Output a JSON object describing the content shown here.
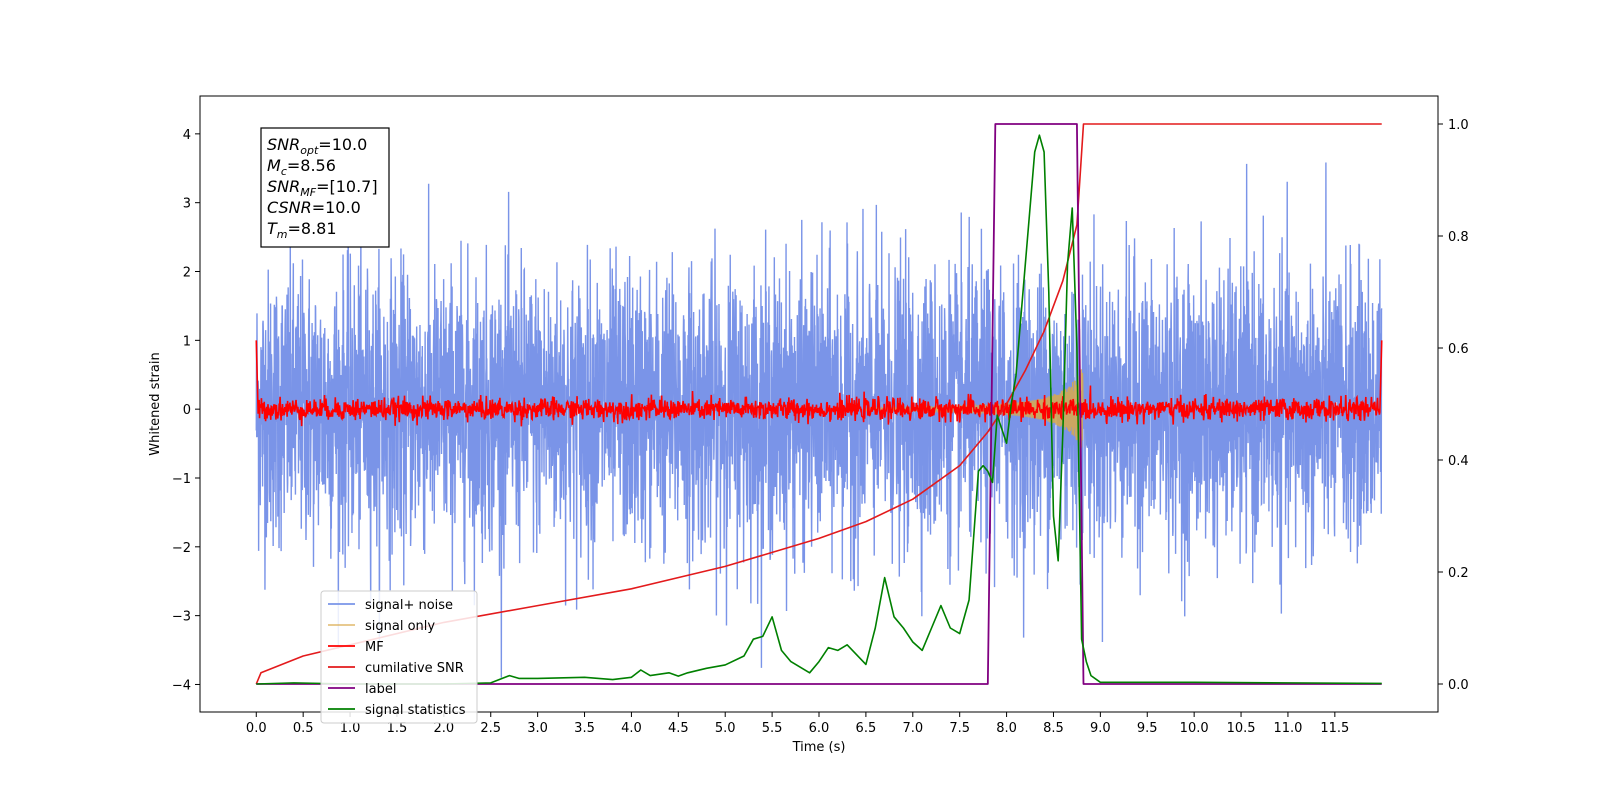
{
  "chart_data": {
    "type": "line",
    "xlabel": "Time (s)",
    "ylabel_left": "Whitened strain",
    "xlim": [
      -0.6,
      12.6
    ],
    "ylim_left": [
      -4.4,
      4.55
    ],
    "ylim_right": [
      -0.05,
      1.05
    ],
    "x_ticks": [
      "0.0",
      "0.5",
      "1.0",
      "1.5",
      "2.0",
      "2.5",
      "3.0",
      "3.5",
      "4.0",
      "4.5",
      "5.0",
      "5.5",
      "6.0",
      "6.5",
      "7.0",
      "7.5",
      "8.0",
      "8.5",
      "9.0",
      "9.5",
      "10.0",
      "10.5",
      "11.0",
      "11.5"
    ],
    "y_left_ticks": [
      "4",
      "3",
      "2",
      "1",
      "0",
      "−1",
      "−2",
      "−3",
      "−4"
    ],
    "y_right_ticks": [
      "1.0",
      "0.8",
      "0.6",
      "0.4",
      "0.2",
      "0.0"
    ],
    "grid": false,
    "legend_position": "lower-left",
    "info_box": {
      "lines": [
        {
          "sym": "SNR",
          "sub": "opt",
          "val": "=10.0"
        },
        {
          "sym": "M",
          "sub": "c",
          "val": "=8.56"
        },
        {
          "sym": "SNR",
          "sub": "MF",
          "val": "=[10.7]"
        },
        {
          "sym": "CSNR",
          "sub": "",
          "val": "=10.0"
        },
        {
          "sym": "T",
          "sub": "m",
          "val": "=8.81"
        }
      ]
    },
    "series": [
      {
        "name": "signal+ noise",
        "color": "#7a94e8",
        "axis": "left",
        "description_values": {
          "x_range": [
            0,
            12
          ],
          "sigma": 1.0,
          "mean": 0.0
        }
      },
      {
        "name": "signal only",
        "color": "#d9a94a",
        "axis": "left",
        "chirp": {
          "start": 6.5,
          "end": 8.82,
          "max_amplitude": 0.65
        }
      },
      {
        "name": "MF",
        "color": "#ff0000",
        "axis": "left",
        "description_values": {
          "x_range": [
            0,
            12
          ],
          "mean": 0.0,
          "sigma": 0.08,
          "edge_value": 1.0
        }
      },
      {
        "name": "cumilative SNR",
        "color": "#e31a1c",
        "axis": "right",
        "x": [
          0,
          0.05,
          0.5,
          1,
          2,
          3,
          4,
          5,
          6,
          6.5,
          7,
          7.5,
          7.8,
          8.0,
          8.2,
          8.4,
          8.6,
          8.75,
          8.82,
          12
        ],
        "y": [
          0.0,
          0.02,
          0.05,
          0.07,
          0.11,
          0.14,
          0.17,
          0.21,
          0.26,
          0.29,
          0.33,
          0.39,
          0.45,
          0.5,
          0.56,
          0.63,
          0.72,
          0.82,
          1.0,
          1.0
        ]
      },
      {
        "name": "label",
        "color": "#800080",
        "axis": "right",
        "x": [
          0,
          7.8,
          7.88,
          8.75,
          8.82,
          12
        ],
        "y": [
          0,
          0,
          1,
          1,
          0,
          0
        ]
      },
      {
        "name": "signal statistics",
        "color": "#008000",
        "axis": "right",
        "x": [
          0,
          0.4,
          1,
          1.5,
          2,
          2.5,
          2.7,
          2.8,
          3.0,
          3.5,
          3.8,
          4.0,
          4.1,
          4.2,
          4.4,
          4.5,
          4.6,
          4.8,
          5.0,
          5.2,
          5.3,
          5.4,
          5.5,
          5.6,
          5.7,
          5.9,
          6.0,
          6.1,
          6.2,
          6.3,
          6.5,
          6.6,
          6.7,
          6.8,
          6.9,
          7.0,
          7.1,
          7.2,
          7.3,
          7.4,
          7.5,
          7.6,
          7.7,
          7.75,
          7.8,
          7.85,
          7.9,
          8.0,
          8.05,
          8.1,
          8.15,
          8.2,
          8.3,
          8.35,
          8.4,
          8.45,
          8.5,
          8.55,
          8.6,
          8.65,
          8.7,
          8.75,
          8.8,
          8.85,
          8.9,
          9.0,
          10,
          11,
          12
        ],
        "y": [
          0,
          0.002,
          0,
          0,
          0,
          0.002,
          0.015,
          0.01,
          0.01,
          0.012,
          0.008,
          0.012,
          0.025,
          0.015,
          0.02,
          0.014,
          0.02,
          0.028,
          0.034,
          0.05,
          0.08,
          0.085,
          0.12,
          0.06,
          0.04,
          0.02,
          0.04,
          0.065,
          0.06,
          0.07,
          0.035,
          0.1,
          0.19,
          0.12,
          0.1,
          0.075,
          0.06,
          0.1,
          0.14,
          0.1,
          0.09,
          0.15,
          0.38,
          0.39,
          0.38,
          0.36,
          0.48,
          0.43,
          0.5,
          0.55,
          0.65,
          0.75,
          0.95,
          0.98,
          0.95,
          0.7,
          0.3,
          0.22,
          0.45,
          0.75,
          0.85,
          0.6,
          0.08,
          0.04,
          0.015,
          0.003,
          0.003,
          0.002,
          0.001
        ]
      }
    ]
  }
}
